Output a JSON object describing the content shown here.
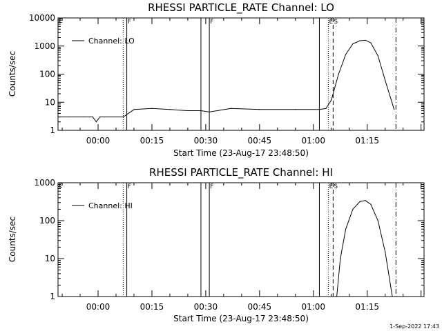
{
  "footer": {
    "timestamp": "1-Sep-2022 17:43"
  },
  "chart_data": [
    {
      "type": "line",
      "title": "RHESSI PARTICLE_RATE Channel: LO",
      "xlabel": "Start Time (23-Aug-17 23:48:50)",
      "ylabel": "Counts/sec",
      "yscale": "log",
      "ylim": [
        1,
        10000
      ],
      "xlim": [
        "-00:11:10",
        "01:30:50"
      ],
      "x_ticks": [
        "00:00",
        "00:15",
        "00:30",
        "00:45",
        "01:00",
        "01:15"
      ],
      "y_ticks": [
        "1",
        "10",
        "100",
        "1000",
        "10000"
      ],
      "grid": false,
      "legend_position": "top-left",
      "series": [
        {
          "name": "Channel: LO",
          "x": [
            "-00:11:10",
            "-00:08:00",
            "-00:04:00",
            "-00:01:30",
            "-00:00:30",
            "00:00:30",
            "00:07:00",
            "00:10:00",
            "00:15:00",
            "00:20:00",
            "00:25:00",
            "00:28:40",
            "00:31:00",
            "00:37:00",
            "00:45:00",
            "00:55:00",
            "01:01:40",
            "01:03:30",
            "01:05:00",
            "01:07:00",
            "01:09:00",
            "01:11:00",
            "01:13:00",
            "01:14:30",
            "01:16:00",
            "01:18:00",
            "01:20:00",
            "01:22:30"
          ],
          "y": [
            3,
            3,
            3,
            3,
            2,
            3,
            3,
            5.5,
            6,
            5.5,
            5,
            5,
            4.5,
            6,
            5.5,
            5.5,
            5.5,
            6,
            12,
            100,
            500,
            1200,
            1550,
            1600,
            1300,
            450,
            60,
            5.5
          ]
        }
      ],
      "vertical_markers": [
        {
          "x": "00:07:00",
          "style": "dotted",
          "label": ""
        },
        {
          "x": "00:08:00",
          "style": "solid",
          "label": "F"
        },
        {
          "x": "00:28:40",
          "style": "solid",
          "label": ""
        },
        {
          "x": "00:31:00",
          "style": "solid",
          "label": "F"
        },
        {
          "x": "01:01:40",
          "style": "solid",
          "label": ""
        },
        {
          "x": "01:04:10",
          "style": "dotted",
          "label": "E"
        },
        {
          "x": "01:05:30",
          "style": "dashed",
          "label": "S"
        },
        {
          "x": "01:23:00",
          "style": "dashdot",
          "label": ""
        }
      ],
      "corner_label": "E"
    },
    {
      "type": "line",
      "title": "RHESSI PARTICLE_RATE Channel: HI",
      "xlabel": "Start Time (23-Aug-17 23:48:50)",
      "ylabel": "Counts/sec",
      "yscale": "log",
      "ylim": [
        1,
        1000
      ],
      "xlim": [
        "-00:11:10",
        "01:30:50"
      ],
      "x_ticks": [
        "00:00",
        "00:15",
        "00:30",
        "00:45",
        "01:00",
        "01:15"
      ],
      "y_ticks": [
        "1",
        "10",
        "100",
        "1000"
      ],
      "grid": false,
      "legend_position": "top-left",
      "series": [
        {
          "name": "Channel: HI",
          "x": [
            "01:06:30",
            "01:07:30",
            "01:09:00",
            "01:11:00",
            "01:13:00",
            "01:14:30",
            "01:16:00",
            "01:18:00",
            "01:20:00",
            "01:22:00"
          ],
          "y": [
            1,
            10,
            60,
            200,
            320,
            340,
            270,
            100,
            15,
            1
          ]
        }
      ],
      "vertical_markers": [
        {
          "x": "00:07:00",
          "style": "dotted",
          "label": ""
        },
        {
          "x": "00:08:00",
          "style": "solid",
          "label": "F"
        },
        {
          "x": "00:28:40",
          "style": "solid",
          "label": ""
        },
        {
          "x": "00:31:00",
          "style": "solid",
          "label": "F"
        },
        {
          "x": "01:01:40",
          "style": "solid",
          "label": ""
        },
        {
          "x": "01:04:10",
          "style": "dotted",
          "label": "E"
        },
        {
          "x": "01:05:30",
          "style": "dashed",
          "label": "S"
        },
        {
          "x": "01:23:00",
          "style": "dashdot",
          "label": ""
        }
      ],
      "corner_label": "E"
    }
  ]
}
